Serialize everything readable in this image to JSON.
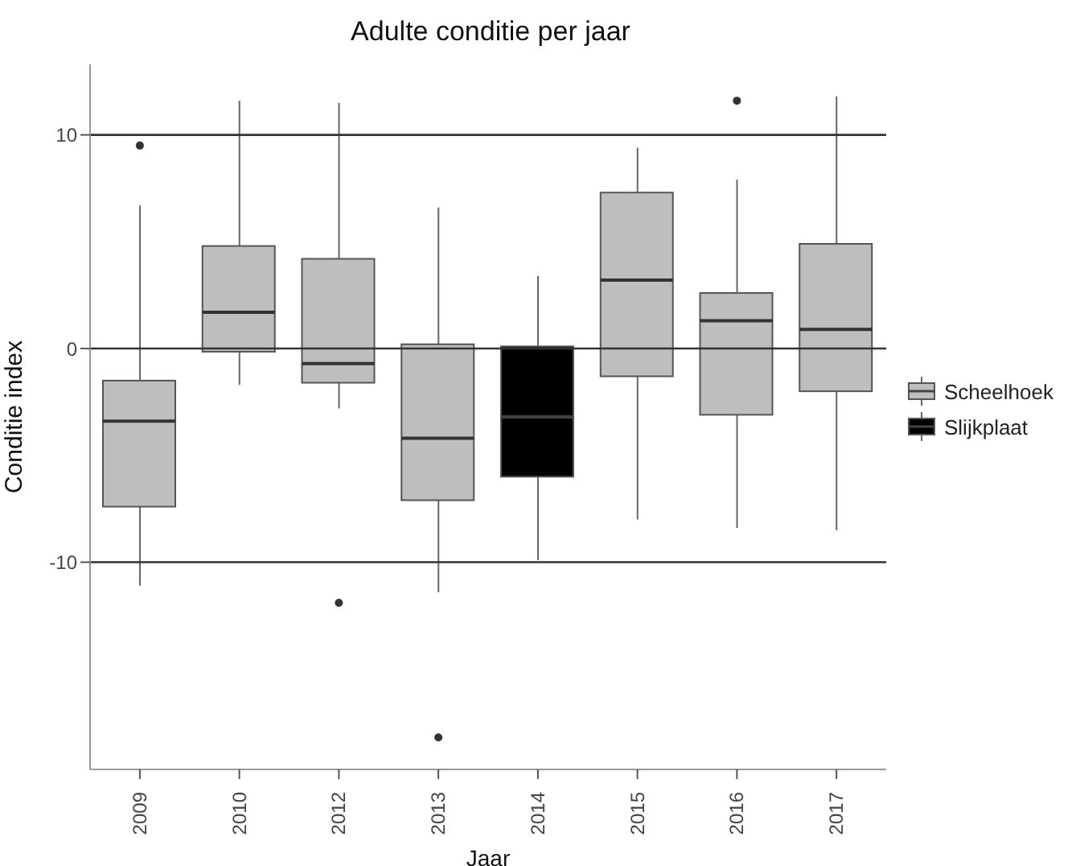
{
  "chart_data": {
    "type": "box",
    "title": "Adulte conditie per jaar",
    "xlabel": "Jaar",
    "ylabel": "Conditie index",
    "categories": [
      "2009",
      "2010",
      "2012",
      "2013",
      "2014",
      "2015",
      "2016",
      "2017"
    ],
    "series": [
      {
        "name": "Scheelhoek",
        "color": "#bebebe",
        "boxes": [
          {
            "low": -11.1,
            "q1": -7.4,
            "median": -3.4,
            "q3": -1.5,
            "high": 6.7,
            "outliers": [
              9.5
            ]
          },
          {
            "low": -1.7,
            "q1": -0.15,
            "median": 1.7,
            "q3": 4.8,
            "high": 11.6
          },
          {
            "low": -2.8,
            "q1": -1.6,
            "median": -0.7,
            "q3": 4.2,
            "high": 11.5,
            "outliers": [
              -11.9
            ]
          },
          {
            "low": -11.4,
            "q1": -7.1,
            "median": -4.2,
            "q3": 0.2,
            "high": 6.6,
            "outliers": [
              -18.2
            ]
          },
          null,
          {
            "low": -8.0,
            "q1": -1.3,
            "median": 3.2,
            "q3": 7.3,
            "high": 9.4
          },
          {
            "low": -8.4,
            "q1": -3.1,
            "median": 1.3,
            "q3": 2.6,
            "high": 7.9,
            "outliers": [
              11.6
            ]
          },
          {
            "low": -8.5,
            "q1": -2.0,
            "median": 0.9,
            "q3": 4.9,
            "high": 11.8
          }
        ]
      },
      {
        "name": "Slijkplaat",
        "color": "#000000",
        "boxes": [
          null,
          null,
          null,
          null,
          {
            "low": -9.9,
            "q1": -6.0,
            "median": -3.2,
            "q3": 0.1,
            "high": 3.4
          },
          null,
          null,
          null
        ]
      }
    ],
    "ylim": [
      -19.7,
      13.3
    ],
    "yticks": [
      -10,
      0,
      10
    ],
    "ref_lines": [
      {
        "axis": "y",
        "value": 10,
        "color": "#333333"
      },
      {
        "axis": "y",
        "value": 0,
        "color": "#333333"
      },
      {
        "axis": "y",
        "value": -10,
        "color": "#333333"
      }
    ],
    "legend": "right"
  }
}
